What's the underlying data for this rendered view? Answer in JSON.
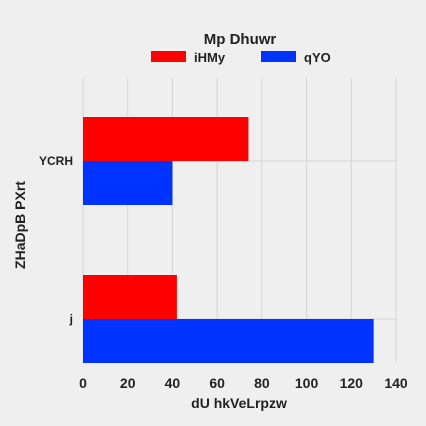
{
  "chart_data": {
    "type": "bar",
    "orientation": "horizontal",
    "legend": {
      "title": "Mp  Dhuwr",
      "placement": "top-center"
    },
    "categories": [
      "YCRH",
      "j"
    ],
    "series": [
      {
        "name": "iHMy",
        "color": "#ff0000",
        "values": [
          74,
          42
        ]
      },
      {
        "name": "qYO",
        "color": "#0033ff",
        "values": [
          40,
          130
        ]
      }
    ],
    "xlabel": "dU hkVeLrpzw",
    "ylabel": "ZHaDpB  PXrt",
    "xlim": [
      0,
      140
    ],
    "xticks": [
      "0",
      "20",
      "40",
      "60",
      "80",
      "100",
      "120",
      "140"
    ],
    "grid": true
  }
}
